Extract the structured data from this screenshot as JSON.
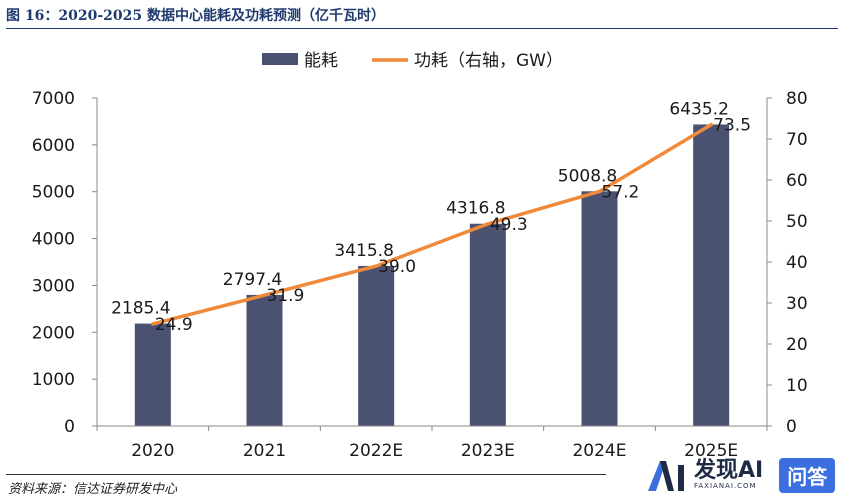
{
  "figure_title": "图 16：2020-2025 数据中心能耗及功耗预测（亿千瓦时）",
  "source": "资料来源：信达证券研发中心",
  "watermark": {
    "name": "发现AI",
    "sub": "FAXIANAI.COM",
    "badge": "问答"
  },
  "colors": {
    "bar": "#4b5170",
    "line": "#f0893a",
    "title": "#1f3a6e"
  },
  "chart_data": {
    "type": "bar",
    "title": "2020-2025 数据中心能耗及功耗预测（亿千瓦时）",
    "categories": [
      "2020",
      "2021",
      "2022E",
      "2023E",
      "2024E",
      "2025E"
    ],
    "series": [
      {
        "name": "能耗",
        "type": "bar",
        "axis": "left",
        "values": [
          2185.4,
          2797.4,
          3415.8,
          4316.8,
          5008.8,
          6435.2
        ],
        "labels": [
          "2185.4",
          "2797.4",
          "3415.8",
          "4316.8",
          "5008.8",
          "6435.2"
        ]
      },
      {
        "name": "功耗（右轴，GW）",
        "type": "line",
        "axis": "right",
        "values": [
          24.9,
          31.9,
          39.0,
          49.3,
          57.2,
          73.5
        ],
        "labels": [
          "24.9",
          "31.9",
          "39.0",
          "49.3",
          "57.2",
          "73.5"
        ]
      }
    ],
    "y_left": {
      "min": 0,
      "max": 7000,
      "ticks": [
        "0",
        "1000",
        "2000",
        "3000",
        "4000",
        "5000",
        "6000",
        "7000"
      ]
    },
    "y_right": {
      "min": 0,
      "max": 80,
      "ticks": [
        "0",
        "10",
        "20",
        "30",
        "40",
        "50",
        "60",
        "70",
        "80"
      ]
    },
    "legend": {
      "position": "top-center",
      "items": [
        "能耗",
        "功耗（右轴，GW）"
      ]
    },
    "grid": false
  }
}
